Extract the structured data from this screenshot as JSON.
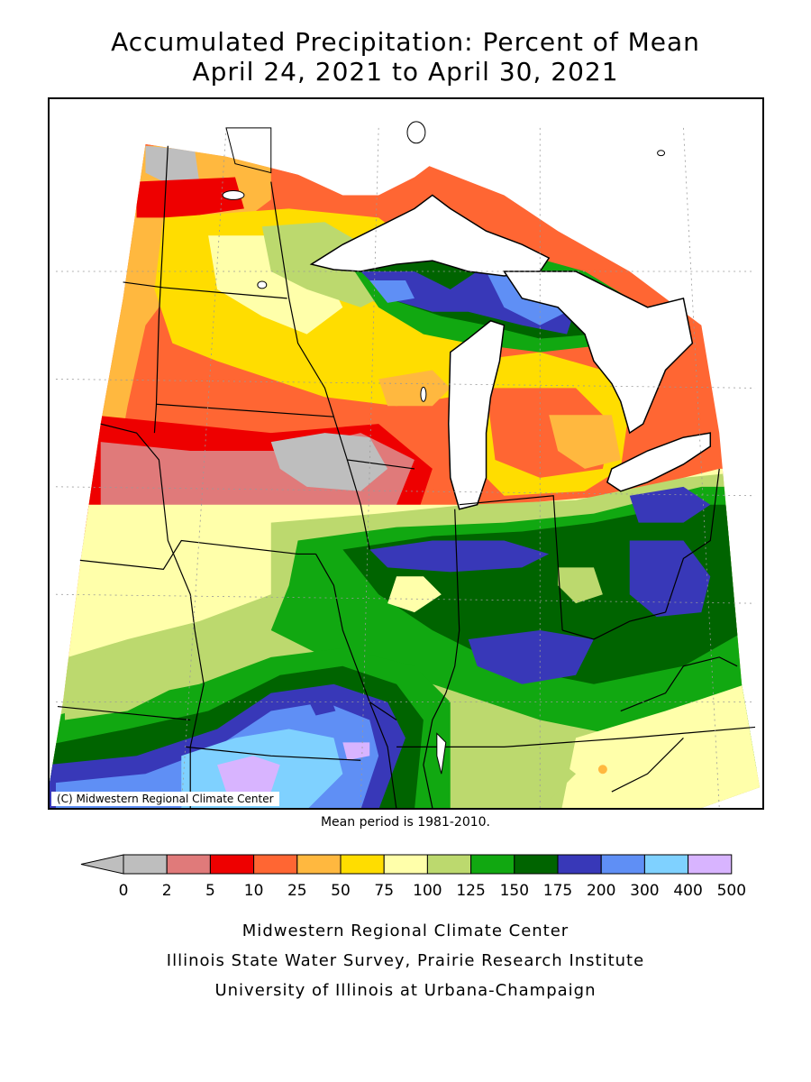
{
  "header": {
    "title": "Accumulated Precipitation: Percent of Mean",
    "date_range": "April 24, 2021 to April 30, 2021"
  },
  "map": {
    "copyright": "(C) Midwestern Regional Climate Center",
    "mean_period": "Mean period is 1981-2010."
  },
  "legend": {
    "bins": [
      {
        "color": "#bebebe"
      },
      {
        "color": "#e07a7a"
      },
      {
        "color": "#ee0000"
      },
      {
        "color": "#ff6633"
      },
      {
        "color": "#ffb83f"
      },
      {
        "color": "#ffdd00"
      },
      {
        "color": "#ffffaa"
      },
      {
        "color": "#bcd96e"
      },
      {
        "color": "#11a811"
      },
      {
        "color": "#006400"
      },
      {
        "color": "#3838b8"
      },
      {
        "color": "#5f8ff5"
      },
      {
        "color": "#7fd1ff"
      },
      {
        "color": "#d8b4ff"
      }
    ],
    "labels": [
      "0",
      "2",
      "5",
      "10",
      "25",
      "50",
      "75",
      "100",
      "125",
      "150",
      "175",
      "200",
      "300",
      "400",
      "500"
    ]
  },
  "credits": [
    "Midwestern Regional Climate Center",
    "Illinois State Water Survey, Prairie Research Institute",
    "University of Illinois at Urbana-Champaign"
  ]
}
